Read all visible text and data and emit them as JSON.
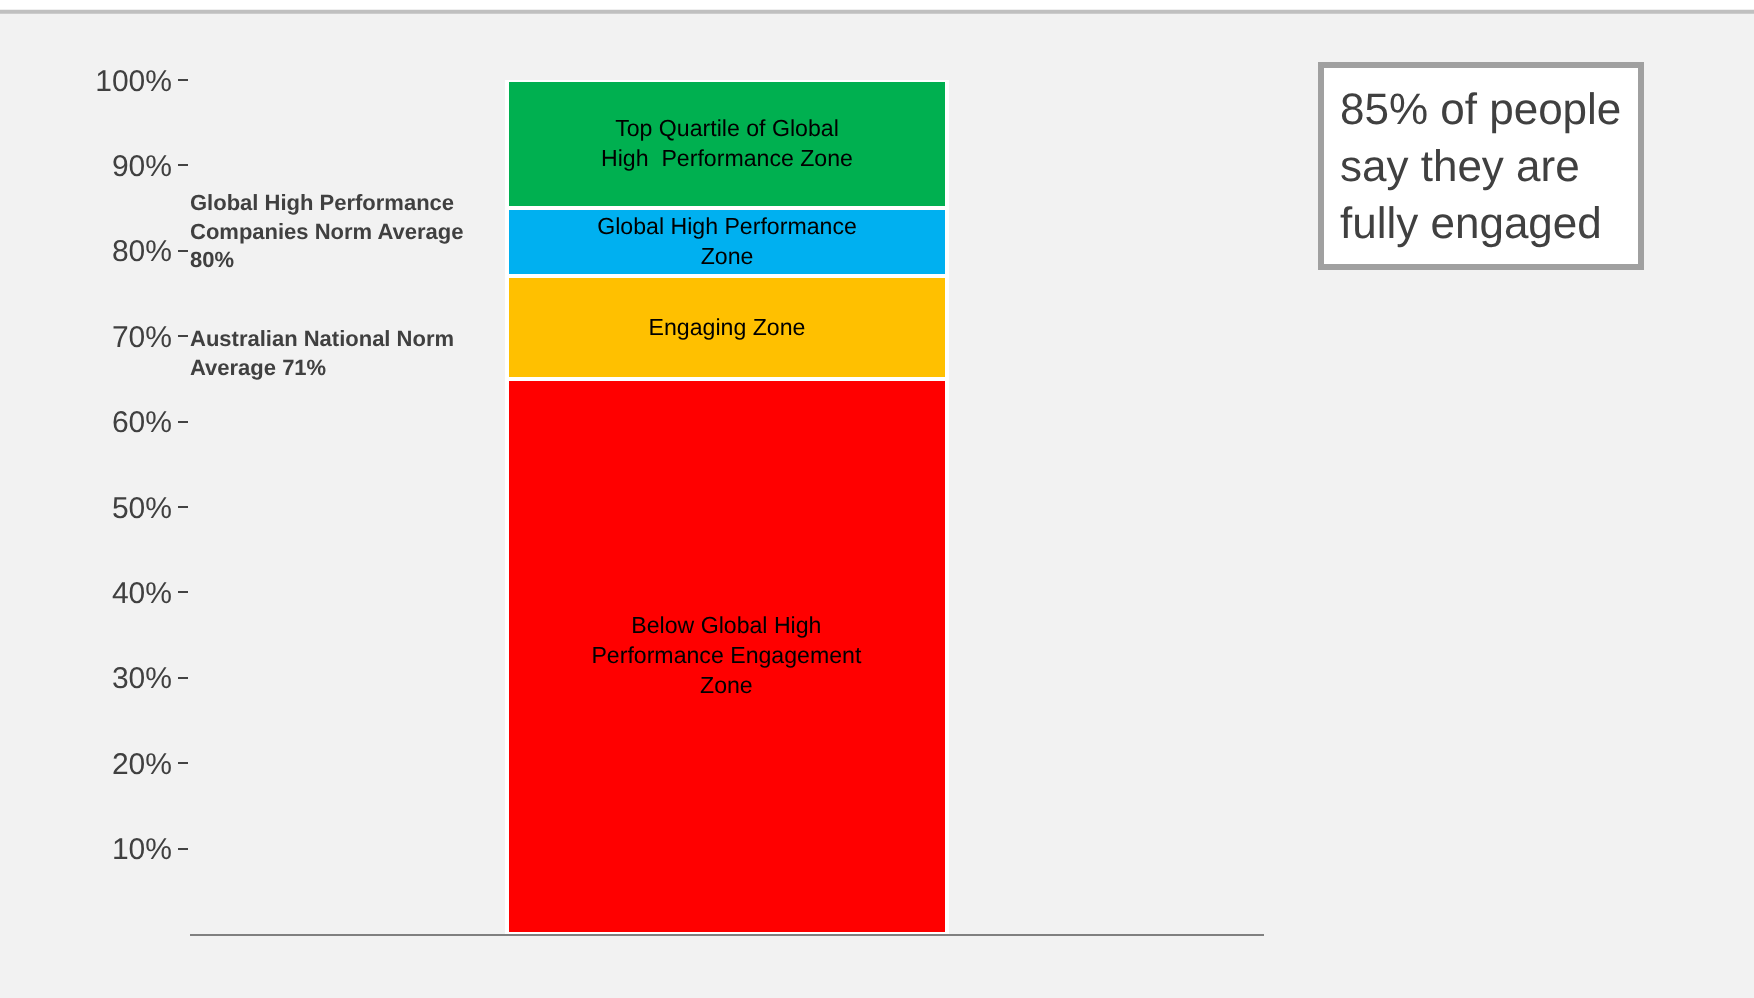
{
  "chart_data": {
    "type": "bar",
    "stacked": true,
    "categories": [
      null
    ],
    "series": [
      {
        "name": "Below Global High Performance Engagement Zone",
        "color": "#ff0000",
        "values": [
          65
        ]
      },
      {
        "name": "Engaging Zone",
        "color": "#ffc000",
        "values": [
          12
        ]
      },
      {
        "name": "Global High Performance Zone",
        "color": "#00b0f0",
        "values": [
          8
        ]
      },
      {
        "name": "Top Quartile of Global High  Performance Zone",
        "color": "#00b050",
        "values": [
          15
        ]
      }
    ],
    "ylim": [
      0,
      100
    ],
    "yticks": [
      {
        "value": 10,
        "label": "10%"
      },
      {
        "value": 20,
        "label": "20%"
      },
      {
        "value": 30,
        "label": "30%"
      },
      {
        "value": 40,
        "label": "40%"
      },
      {
        "value": 50,
        "label": "50%"
      },
      {
        "value": 60,
        "label": "60%"
      },
      {
        "value": 70,
        "label": "70%"
      },
      {
        "value": 80,
        "label": "80%"
      },
      {
        "value": 90,
        "label": "90%"
      },
      {
        "value": 100,
        "label": "100%"
      }
    ],
    "annotations": [
      "Global High Performance Companies Norm Average 80%",
      "Australian National Norm Average 71%",
      "85% of people say they are fully engaged"
    ],
    "grid": false,
    "legend": false
  }
}
